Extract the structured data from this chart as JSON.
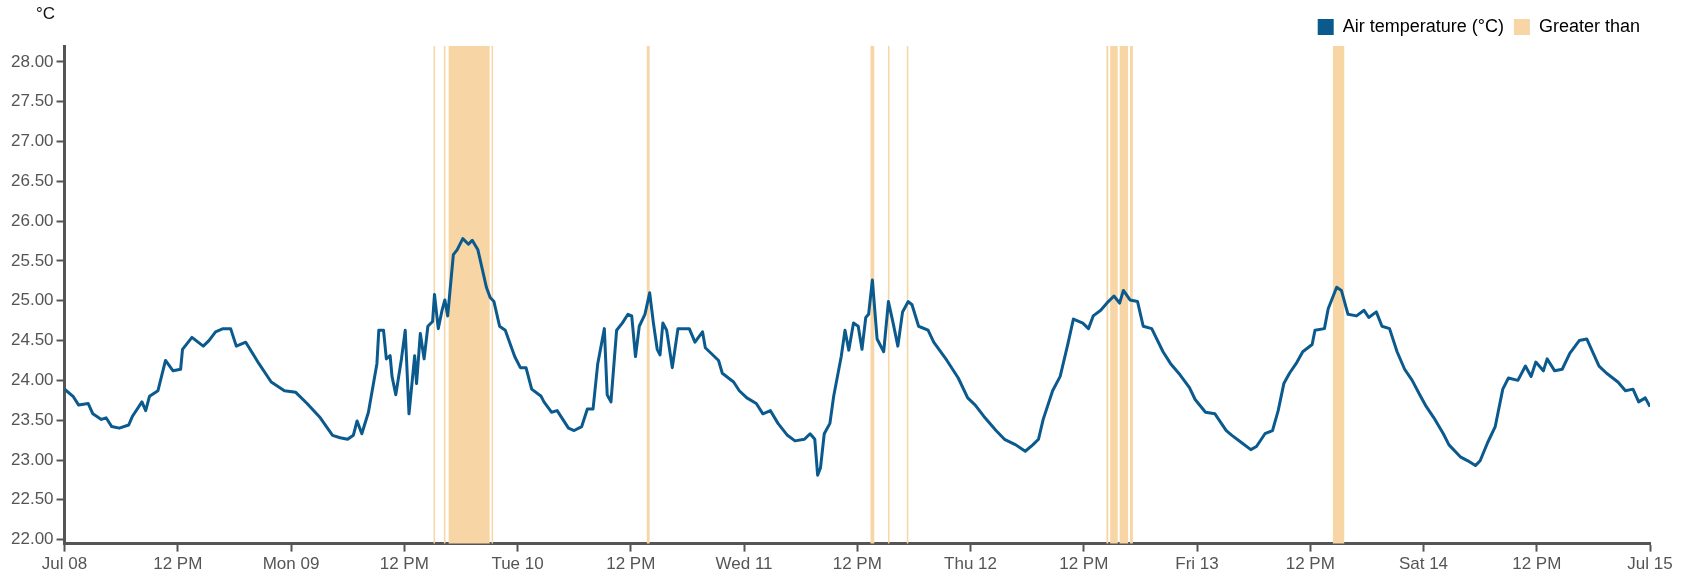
{
  "chart_data": {
    "type": "line",
    "ylabel": "°C",
    "legend": "top right",
    "xlim": [
      "--07-08T00:00",
      "--07-15T00:00"
    ],
    "xticks": [
      {
        "value": "--07-08T00:00",
        "label": "Jul 08"
      },
      {
        "value": "--07-08T12:00",
        "label": "12 PM"
      },
      {
        "value": "--07-09T00:00",
        "label": "Mon 09"
      },
      {
        "value": "--07-09T12:00",
        "label": "12 PM"
      },
      {
        "value": "--07-10T00:00",
        "label": "Tue 10"
      },
      {
        "value": "--07-10T12:00",
        "label": "12 PM"
      },
      {
        "value": "--07-11T00:00",
        "label": "Wed 11"
      },
      {
        "value": "--07-11T12:00",
        "label": "12 PM"
      },
      {
        "value": "--07-12T00:00",
        "label": "Thu 12"
      },
      {
        "value": "--07-12T12:00",
        "label": "12 PM"
      },
      {
        "value": "--07-13T00:00",
        "label": "Fri 13"
      },
      {
        "value": "--07-13T12:00",
        "label": "12 PM"
      },
      {
        "value": "--07-14T00:00",
        "label": "Sat 14"
      },
      {
        "value": "--07-14T12:00",
        "label": "12 PM"
      },
      {
        "value": "--07-15T00:00",
        "label": "Jul 15"
      }
    ],
    "ylim": [
      21.95,
      28.2
    ],
    "yticks": [
      {
        "value": 22,
        "label": "22.00"
      },
      {
        "value": 22.5,
        "label": "22.50"
      },
      {
        "value": 23,
        "label": "23.00"
      },
      {
        "value": 23.5,
        "label": "23.50"
      },
      {
        "value": 24,
        "label": "24.00"
      },
      {
        "value": 24.5,
        "label": "24.50"
      },
      {
        "value": 25,
        "label": "25.00"
      },
      {
        "value": 25.5,
        "label": "25.50"
      },
      {
        "value": 26,
        "label": "26.00"
      },
      {
        "value": 26.5,
        "label": "26.50"
      },
      {
        "value": 27,
        "label": "27.00"
      },
      {
        "value": 27.5,
        "label": "27.50"
      },
      {
        "value": 28,
        "label": "28.00"
      }
    ],
    "x": [
      "--07-08T00:00",
      "--07-08T00:54",
      "--07-08T01:30",
      "--07-08T02:30",
      "--07-08T03:00",
      "--07-08T03:54",
      "--07-08T04:24",
      "--07-08T05:00",
      "--07-08T05:48",
      "--07-08T06:48",
      "--07-08T07:12",
      "--07-08T08:12",
      "--07-08T08:36",
      "--07-08T09:00",
      "--07-08T09:54",
      "--07-08T10:42",
      "--07-08T11:30",
      "--07-08T12:18",
      "--07-08T12:30",
      "--07-08T13:30",
      "--07-08T14:42",
      "--07-08T15:18",
      "--07-08T16:00",
      "--07-08T16:48",
      "--07-08T17:36",
      "--07-08T18:12",
      "--07-08T19:12",
      "--07-08T20:36",
      "--07-08T21:54",
      "--07-08T23:18",
      "--07-09T00:30",
      "--07-09T01:42",
      "--07-09T03:06",
      "--07-09T04:24",
      "--07-09T05:12",
      "--07-09T06:00",
      "--07-09T06:36",
      "--07-09T07:00",
      "--07-09T07:30",
      "--07-09T08:12",
      "--07-09T09:06",
      "--07-09T09:18",
      "--07-09T09:48",
      "--07-09T10:06",
      "--07-09T10:30",
      "--07-09T10:42",
      "--07-09T11:06",
      "--07-09T11:42",
      "--07-09T12:06",
      "--07-09T12:30",
      "--07-09T13:06",
      "--07-09T13:18",
      "--07-09T13:42",
      "--07-09T14:06",
      "--07-09T14:30",
      "--07-09T15:00",
      "--07-09T15:12",
      "--07-09T15:36",
      "--07-09T16:00",
      "--07-09T16:18",
      "--07-09T16:36",
      "--07-09T17:12",
      "--07-09T17:36",
      "--07-09T18:12",
      "--07-09T18:48",
      "--07-09T19:12",
      "--07-09T19:48",
      "--07-09T20:42",
      "--07-09T21:06",
      "--07-09T21:30",
      "--07-09T22:06",
      "--07-09T22:42",
      "--07-09T23:42",
      "--07-10T00:18",
      "--07-10T00:54",
      "--07-10T01:30",
      "--07-10T02:30",
      "--07-10T02:48",
      "--07-10T03:36",
      "--07-10T04:12",
      "--07-10T04:48",
      "--07-10T05:24",
      "--07-10T06:00",
      "--07-10T06:48",
      "--07-10T07:24",
      "--07-10T08:00",
      "--07-10T08:30",
      "--07-10T09:12",
      "--07-10T09:30",
      "--07-10T09:54",
      "--07-10T10:30",
      "--07-10T11:06",
      "--07-10T11:42",
      "--07-10T12:06",
      "--07-10T12:30",
      "--07-10T12:54",
      "--07-10T13:30",
      "--07-10T14:00",
      "--07-10T14:24",
      "--07-10T14:48",
      "--07-10T15:06",
      "--07-10T15:24",
      "--07-10T15:48",
      "--07-10T16:24",
      "--07-10T17:00",
      "--07-10T18:12",
      "--07-10T18:48",
      "--07-10T19:36",
      "--07-10T19:54",
      "--07-10T21:18",
      "--07-10T21:42",
      "--07-10T22:54",
      "--07-10T23:30",
      "--07-11T00:18",
      "--07-11T01:18",
      "--07-11T02:00",
      "--07-11T02:48",
      "--07-11T03:36",
      "--07-11T04:36",
      "--07-11T05:24",
      "--07-11T06:24",
      "--07-11T07:00",
      "--07-11T07:30",
      "--07-11T07:48",
      "--07-11T08:06",
      "--07-11T08:30",
      "--07-11T09:06",
      "--07-11T09:30",
      "--07-11T10:18",
      "--07-11T10:42",
      "--07-11T11:06",
      "--07-11T11:36",
      "--07-11T12:06",
      "--07-11T12:30",
      "--07-11T12:54",
      "--07-11T13:12",
      "--07-11T13:36",
      "--07-11T14:06",
      "--07-11T14:48",
      "--07-11T15:18",
      "--07-11T15:48",
      "--07-11T16:18",
      "--07-11T16:48",
      "--07-11T17:24",
      "--07-11T17:48",
      "--07-11T18:30",
      "--07-11T19:30",
      "--07-11T20:06",
      "--07-11T21:30",
      "--07-11T22:42",
      "--07-11T23:42",
      "--07-12T00:30",
      "--07-12T01:24",
      "--07-12T02:42",
      "--07-12T03:36",
      "--07-12T04:48",
      "--07-12T05:48",
      "--07-12T06:36",
      "--07-12T07:12",
      "--07-12T07:42",
      "--07-12T08:42",
      "--07-12T09:30",
      "--07-12T10:18",
      "--07-12T10:54",
      "--07-12T11:54",
      "--07-12T12:30",
      "--07-12T13:00",
      "--07-12T13:48",
      "--07-12T14:36",
      "--07-12T15:12",
      "--07-12T15:48",
      "--07-12T16:12",
      "--07-12T16:54",
      "--07-12T17:42",
      "--07-12T18:18",
      "--07-12T19:12",
      "--07-12T20:24",
      "--07-12T21:12",
      "--07-12T22:12",
      "--07-12T23:12",
      "--07-12T23:48",
      "--07-13T00:54",
      "--07-13T01:54",
      "--07-13T03:06",
      "--07-13T03:42",
      "--07-13T04:42",
      "--07-13T05:42",
      "--07-13T06:18",
      "--07-13T07:12",
      "--07-13T08:00",
      "--07-13T08:36",
      "--07-13T09:12",
      "--07-13T09:48",
      "--07-13T10:36",
      "--07-13T11:12",
      "--07-13T12:12",
      "--07-13T12:30",
      "--07-13T13:30",
      "--07-13T13:54",
      "--07-13T14:48",
      "--07-13T15:18",
      "--07-13T16:00",
      "--07-13T16:54",
      "--07-13T17:42",
      "--07-13T18:12",
      "--07-13T19:00",
      "--07-13T19:36",
      "--07-13T20:24",
      "--07-13T21:12",
      "--07-13T22:00",
      "--07-13T22:48",
      "--07-13T23:36",
      "--07-14T00:18",
      "--07-14T01:06",
      "--07-14T02:06",
      "--07-14T02:42",
      "--07-14T03:54",
      "--07-14T04:42",
      "--07-14T05:30",
      "--07-14T06:00",
      "--07-14T06:48",
      "--07-14T07:36",
      "--07-14T08:24",
      "--07-14T09:00",
      "--07-14T10:00",
      "--07-14T10:48",
      "--07-14T11:24",
      "--07-14T11:54",
      "--07-14T12:42",
      "--07-14T13:06",
      "--07-14T13:54",
      "--07-14T14:42",
      "--07-14T15:30",
      "--07-14T16:30",
      "--07-14T17:18",
      "--07-14T17:48",
      "--07-14T18:36",
      "--07-14T19:24",
      "--07-14T20:36",
      "--07-14T21:24",
      "--07-14T22:12",
      "--07-14T22:48",
      "--07-14T23:30",
      "--07-15T00:00"
    ],
    "series": [
      {
        "name": "Air temperature (°C)",
        "color": "#0b5a8e",
        "values": [
          23.89,
          23.8,
          23.69,
          23.71,
          23.58,
          23.51,
          23.53,
          23.42,
          23.4,
          23.44,
          23.55,
          23.73,
          23.62,
          23.8,
          23.87,
          24.25,
          24.12,
          24.14,
          24.39,
          24.54,
          24.43,
          24.5,
          24.61,
          24.65,
          24.65,
          24.43,
          24.48,
          24.21,
          23.98,
          23.87,
          23.85,
          23.71,
          23.53,
          23.31,
          23.28,
          23.26,
          23.31,
          23.49,
          23.33,
          23.6,
          24.21,
          24.63,
          24.63,
          24.27,
          24.31,
          24.05,
          23.82,
          24.27,
          24.63,
          23.58,
          24.31,
          23.96,
          24.59,
          24.27,
          24.68,
          24.74,
          25.08,
          24.65,
          24.88,
          25.01,
          24.81,
          25.58,
          25.64,
          25.78,
          25.71,
          25.76,
          25.64,
          25.17,
          25.04,
          24.99,
          24.68,
          24.63,
          24.3,
          24.16,
          24.16,
          23.89,
          23.8,
          23.73,
          23.6,
          23.62,
          23.51,
          23.4,
          23.37,
          23.42,
          23.64,
          23.64,
          24.21,
          24.65,
          23.82,
          23.73,
          24.63,
          24.72,
          24.83,
          24.81,
          24.3,
          24.68,
          24.83,
          25.1,
          24.72,
          24.39,
          24.32,
          24.72,
          24.63,
          24.16,
          24.65,
          24.65,
          24.48,
          24.61,
          24.41,
          24.25,
          24.09,
          23.98,
          23.87,
          23.78,
          23.71,
          23.58,
          23.62,
          23.46,
          23.31,
          23.24,
          23.26,
          23.33,
          23.26,
          22.81,
          22.9,
          23.33,
          23.46,
          23.8,
          24.3,
          24.63,
          24.38,
          24.72,
          24.68,
          24.39,
          24.79,
          24.83,
          25.26,
          24.52,
          24.36,
          24.99,
          24.72,
          24.43,
          24.86,
          24.99,
          24.95,
          24.68,
          24.63,
          24.48,
          24.25,
          24.03,
          23.78,
          23.69,
          23.55,
          23.37,
          23.26,
          23.19,
          23.11,
          23.19,
          23.26,
          23.51,
          23.87,
          24.05,
          24.45,
          24.77,
          24.72,
          24.65,
          24.81,
          24.88,
          24.99,
          25.06,
          24.97,
          25.13,
          25.01,
          24.99,
          24.68,
          24.65,
          24.36,
          24.21,
          24.07,
          23.91,
          23.76,
          23.6,
          23.58,
          23.37,
          23.31,
          23.22,
          23.13,
          23.17,
          23.33,
          23.37,
          23.62,
          23.96,
          24.09,
          24.23,
          24.36,
          24.45,
          24.63,
          24.65,
          24.9,
          25.17,
          25.13,
          24.83,
          24.81,
          24.88,
          24.79,
          24.86,
          24.68,
          24.65,
          24.36,
          24.14,
          24.0,
          23.82,
          23.67,
          23.53,
          23.33,
          23.19,
          23.04,
          22.99,
          22.93,
          22.99,
          23.22,
          23.42,
          23.89,
          24.03,
          24.0,
          24.18,
          24.05,
          24.23,
          24.12,
          24.27,
          24.12,
          24.14,
          24.34,
          24.5,
          24.52,
          24.39,
          24.18,
          24.09,
          23.98,
          23.87,
          23.89,
          23.73,
          23.78,
          23.67
        ]
      }
    ],
    "bands": [
      {
        "axis": "x",
        "from": "--07-09T16:42",
        "to": "--07-09T21:03",
        "label": "Greater than",
        "color": "#f8d5a5"
      },
      {
        "axis": "x",
        "from": "--07-09T15:06",
        "to": "--07-09T15:12",
        "color": "#f8d5a5"
      },
      {
        "axis": "x",
        "from": "--07-09T16:12",
        "to": "--07-09T16:18",
        "color": "#f8d5a5"
      },
      {
        "axis": "x",
        "from": "--07-09T21:15",
        "to": "--07-09T21:21",
        "color": "#f8d5a5"
      },
      {
        "axis": "x",
        "from": "--07-10T13:42",
        "to": "--07-10T14:00",
        "color": "#f8d5a5"
      },
      {
        "axis": "x",
        "from": "--07-11T13:24",
        "to": "--07-11T13:48",
        "color": "#f8d5a5"
      },
      {
        "axis": "x",
        "from": "--07-11T15:15",
        "to": "--07-11T15:21",
        "color": "#f8d5a5"
      },
      {
        "axis": "x",
        "from": "--07-11T17:15",
        "to": "--07-11T17:21",
        "color": "#f8d5a5"
      },
      {
        "axis": "x",
        "from": "--07-12T14:24",
        "to": "--07-12T14:36",
        "color": "#f8d5a5"
      },
      {
        "axis": "x",
        "from": "--07-12T14:48",
        "to": "--07-12T15:36",
        "color": "#f8d5a5"
      },
      {
        "axis": "x",
        "from": "--07-12T15:48",
        "to": "--07-12T16:42",
        "color": "#f8d5a5"
      },
      {
        "axis": "x",
        "from": "--07-12T16:54",
        "to": "--07-12T17:12",
        "color": "#f8d5a5"
      },
      {
        "axis": "x",
        "from": "--07-13T14:24",
        "to": "--07-13T15:36",
        "color": "#f8d5a5"
      }
    ]
  }
}
